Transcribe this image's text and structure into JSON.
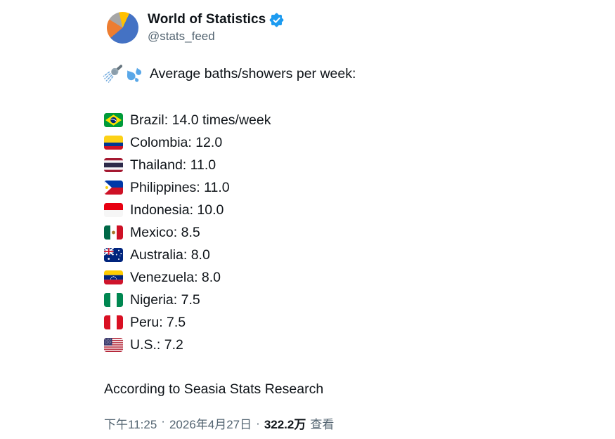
{
  "colors": {
    "verified_blue": "#1D9BF0",
    "text": "#0F1419",
    "muted_gray": "#536471",
    "pie_blue": "#4472C4",
    "pie_orange": "#ED7D31",
    "pie_gray": "#A6A6A6",
    "pie_yellow": "#FFC000"
  },
  "header": {
    "display_name": "World of Statistics",
    "handle": "@stats_feed",
    "verified": true,
    "avatar_icon": "pie-chart-avatar"
  },
  "tweet": {
    "intro_icons": [
      "shower-icon",
      "sweat-droplets-icon"
    ],
    "intro": "Average baths/showers per week:",
    "countries": [
      {
        "flag_icon": "brazil-flag",
        "label": "Brazil: 14.0 times/week"
      },
      {
        "flag_icon": "colombia-flag",
        "label": "Colombia: 12.0"
      },
      {
        "flag_icon": "thailand-flag",
        "label": "Thailand: 11.0"
      },
      {
        "flag_icon": "philippines-flag",
        "label": "Philippines: 11.0"
      },
      {
        "flag_icon": "indonesia-flag",
        "label": "Indonesia: 10.0"
      },
      {
        "flag_icon": "mexico-flag",
        "label": "Mexico: 8.5"
      },
      {
        "flag_icon": "australia-flag",
        "label": "Australia: 8.0"
      },
      {
        "flag_icon": "venezuela-flag",
        "label": "Venezuela: 8.0"
      },
      {
        "flag_icon": "nigeria-flag",
        "label": "Nigeria: 7.5"
      },
      {
        "flag_icon": "peru-flag",
        "label": "Peru: 7.5"
      },
      {
        "flag_icon": "us-flag",
        "label": "U.S.: 7.2"
      }
    ],
    "source_note": "According to Seasia Stats Research"
  },
  "footer": {
    "time": "下午11:25",
    "separator": "·",
    "date": "2026年4月27日",
    "views_count": "322.2万",
    "views_label": "查看"
  },
  "chart_data": {
    "type": "table",
    "title": "Average baths/showers per week",
    "categories": [
      "Brazil",
      "Colombia",
      "Thailand",
      "Philippines",
      "Indonesia",
      "Mexico",
      "Australia",
      "Venezuela",
      "Nigeria",
      "Peru",
      "U.S."
    ],
    "values": [
      14.0,
      12.0,
      11.0,
      11.0,
      10.0,
      8.5,
      8.0,
      8.0,
      7.5,
      7.5,
      7.2
    ],
    "unit": "times/week",
    "source": "Seasia Stats Research"
  }
}
